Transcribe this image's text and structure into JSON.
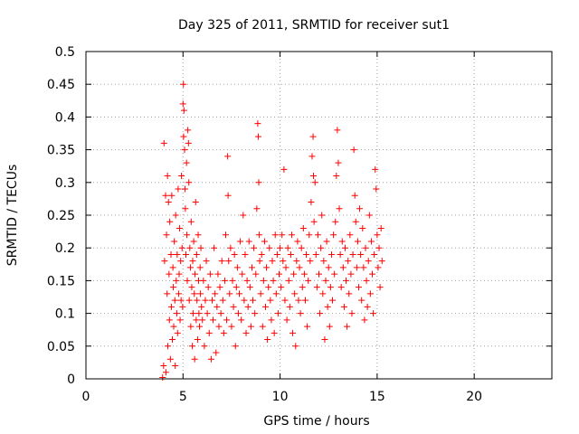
{
  "chart_data": {
    "type": "scatter",
    "title": "Day 325 of 2011, SRMTID for receiver sut1",
    "xlabel": "GPS time / hours",
    "ylabel": "SRMTID / TECUs",
    "xlim": [
      0,
      24
    ],
    "ylim": [
      0,
      0.5
    ],
    "xticks": [
      0,
      5,
      10,
      15,
      20
    ],
    "xtick_labels": [
      "0",
      "5",
      "10",
      "15",
      "20"
    ],
    "yticks": [
      0,
      0.05,
      0.1,
      0.15,
      0.2,
      0.25,
      0.3,
      0.35,
      0.4,
      0.45,
      0.5
    ],
    "ytick_labels": [
      "0",
      "0.05",
      "0.1",
      "0.15",
      "0.2",
      "0.25",
      "0.3",
      "0.35",
      "0.4",
      "0.45",
      "0.5"
    ],
    "grid": true,
    "marker": "+",
    "color": "#ff0000",
    "series": [
      {
        "name": "SRMTID",
        "points": [
          [
            3.95,
            0.002
          ],
          [
            4.0,
            0.02
          ],
          [
            4.02,
            0.36
          ],
          [
            4.05,
            0.18
          ],
          [
            4.1,
            0.28
          ],
          [
            4.12,
            0.01
          ],
          [
            4.15,
            0.22
          ],
          [
            4.18,
            0.13
          ],
          [
            4.2,
            0.31
          ],
          [
            4.22,
            0.05
          ],
          [
            4.25,
            0.27
          ],
          [
            4.28,
            0.16
          ],
          [
            4.3,
            0.09
          ],
          [
            4.32,
            0.24
          ],
          [
            4.35,
            0.03
          ],
          [
            4.38,
            0.19
          ],
          [
            4.4,
            0.11
          ],
          [
            4.42,
            0.28
          ],
          [
            4.45,
            0.06
          ],
          [
            4.48,
            0.17
          ],
          [
            4.5,
            0.14
          ],
          [
            4.52,
            0.08
          ],
          [
            4.55,
            0.21
          ],
          [
            4.58,
            0.12
          ],
          [
            4.6,
            0.02
          ],
          [
            4.62,
            0.25
          ],
          [
            4.65,
            0.15
          ],
          [
            4.68,
            0.1
          ],
          [
            4.7,
            0.19
          ],
          [
            4.72,
            0.07
          ],
          [
            4.75,
            0.29
          ],
          [
            4.78,
            0.13
          ],
          [
            4.8,
            0.16
          ],
          [
            4.82,
            0.23
          ],
          [
            4.85,
            0.09
          ],
          [
            4.88,
            0.18
          ],
          [
            4.9,
            0.12
          ],
          [
            4.92,
            0.31
          ],
          [
            4.95,
            0.2
          ],
          [
            4.98,
            0.11
          ],
          [
            5.0,
            0.42
          ],
          [
            5.02,
            0.45
          ],
          [
            5.03,
            0.37
          ],
          [
            5.05,
            0.41
          ],
          [
            5.08,
            0.35
          ],
          [
            5.1,
            0.29
          ],
          [
            5.12,
            0.26
          ],
          [
            5.15,
            0.19
          ],
          [
            5.18,
            0.33
          ],
          [
            5.2,
            0.22
          ],
          [
            5.22,
            0.15
          ],
          [
            5.25,
            0.38
          ],
          [
            5.28,
            0.36
          ],
          [
            5.3,
            0.3
          ],
          [
            5.32,
            0.12
          ],
          [
            5.35,
            0.2
          ],
          [
            5.38,
            0.17
          ],
          [
            5.4,
            0.08
          ],
          [
            5.42,
            0.24
          ],
          [
            5.45,
            0.14
          ],
          [
            5.48,
            0.05
          ],
          [
            5.5,
            0.18
          ],
          [
            5.52,
            0.1
          ],
          [
            5.55,
            0.21
          ],
          [
            5.58,
            0.13
          ],
          [
            5.6,
            0.03
          ],
          [
            5.62,
            0.16
          ],
          [
            5.65,
            0.27
          ],
          [
            5.68,
            0.09
          ],
          [
            5.7,
            0.19
          ],
          [
            5.72,
            0.12
          ],
          [
            5.75,
            0.06
          ],
          [
            5.78,
            0.22
          ],
          [
            5.8,
            0.15
          ],
          [
            5.82,
            0.1
          ],
          [
            5.85,
            0.08
          ],
          [
            5.88,
            0.17
          ],
          [
            5.9,
            0.13
          ],
          [
            5.92,
            0.2
          ],
          [
            5.95,
            0.11
          ],
          [
            6.0,
            0.09
          ],
          [
            6.05,
            0.15
          ],
          [
            6.1,
            0.05
          ],
          [
            6.15,
            0.12
          ],
          [
            6.2,
            0.18
          ],
          [
            6.25,
            0.1
          ],
          [
            6.3,
            0.14
          ],
          [
            6.35,
            0.07
          ],
          [
            6.4,
            0.16
          ],
          [
            6.45,
            0.03
          ],
          [
            6.5,
            0.12
          ],
          [
            6.55,
            0.09
          ],
          [
            6.6,
            0.2
          ],
          [
            6.65,
            0.13
          ],
          [
            6.7,
            0.04
          ],
          [
            6.75,
            0.11
          ],
          [
            6.8,
            0.16
          ],
          [
            6.85,
            0.08
          ],
          [
            6.9,
            0.14
          ],
          [
            6.95,
            0.1
          ],
          [
            7.0,
            0.18
          ],
          [
            7.05,
            0.12
          ],
          [
            7.1,
            0.07
          ],
          [
            7.15,
            0.15
          ],
          [
            7.2,
            0.22
          ],
          [
            7.25,
            0.09
          ],
          [
            7.3,
            0.34
          ],
          [
            7.32,
            0.28
          ],
          [
            7.35,
            0.18
          ],
          [
            7.4,
            0.13
          ],
          [
            7.45,
            0.2
          ],
          [
            7.5,
            0.08
          ],
          [
            7.55,
            0.15
          ],
          [
            7.6,
            0.11
          ],
          [
            7.65,
            0.19
          ],
          [
            7.7,
            0.05
          ],
          [
            7.75,
            0.14
          ],
          [
            7.8,
            0.17
          ],
          [
            7.85,
            0.1
          ],
          [
            7.9,
            0.13
          ],
          [
            7.95,
            0.21
          ],
          [
            8.0,
            0.09
          ],
          [
            8.05,
            0.16
          ],
          [
            8.1,
            0.25
          ],
          [
            8.15,
            0.12
          ],
          [
            8.2,
            0.19
          ],
          [
            8.25,
            0.07
          ],
          [
            8.3,
            0.15
          ],
          [
            8.35,
            0.11
          ],
          [
            8.4,
            0.21
          ],
          [
            8.45,
            0.14
          ],
          [
            8.5,
            0.08
          ],
          [
            8.55,
            0.17
          ],
          [
            8.6,
            0.12
          ],
          [
            8.65,
            0.2
          ],
          [
            8.7,
            0.1
          ],
          [
            8.75,
            0.16
          ],
          [
            8.8,
            0.26
          ],
          [
            8.85,
            0.39
          ],
          [
            8.88,
            0.37
          ],
          [
            8.9,
            0.3
          ],
          [
            8.92,
            0.22
          ],
          [
            8.95,
            0.18
          ],
          [
            9.0,
            0.13
          ],
          [
            9.05,
            0.19
          ],
          [
            9.1,
            0.08
          ],
          [
            9.15,
            0.15
          ],
          [
            9.2,
            0.21
          ],
          [
            9.25,
            0.11
          ],
          [
            9.3,
            0.17
          ],
          [
            9.35,
            0.06
          ],
          [
            9.4,
            0.14
          ],
          [
            9.45,
            0.2
          ],
          [
            9.5,
            0.12
          ],
          [
            9.55,
            0.09
          ],
          [
            9.6,
            0.18
          ],
          [
            9.65,
            0.15
          ],
          [
            9.7,
            0.07
          ],
          [
            9.75,
            0.22
          ],
          [
            9.8,
            0.13
          ],
          [
            9.85,
            0.19
          ],
          [
            9.9,
            0.1
          ],
          [
            9.95,
            0.16
          ],
          [
            10.0,
            0.2
          ],
          [
            10.05,
            0.14
          ],
          [
            10.1,
            0.22
          ],
          [
            10.15,
            0.18
          ],
          [
            10.2,
            0.32
          ],
          [
            10.25,
            0.12
          ],
          [
            10.3,
            0.17
          ],
          [
            10.35,
            0.09
          ],
          [
            10.4,
            0.2
          ],
          [
            10.45,
            0.15
          ],
          [
            10.5,
            0.11
          ],
          [
            10.55,
            0.19
          ],
          [
            10.6,
            0.22
          ],
          [
            10.65,
            0.07
          ],
          [
            10.7,
            0.16
          ],
          [
            10.75,
            0.13
          ],
          [
            10.8,
            0.05
          ],
          [
            10.85,
            0.18
          ],
          [
            10.9,
            0.21
          ],
          [
            10.95,
            0.12
          ],
          [
            11.0,
            0.17
          ],
          [
            11.05,
            0.1
          ],
          [
            11.1,
            0.2
          ],
          [
            11.15,
            0.14
          ],
          [
            11.2,
            0.23
          ],
          [
            11.25,
            0.16
          ],
          [
            11.3,
            0.12
          ],
          [
            11.35,
            0.19
          ],
          [
            11.4,
            0.08
          ],
          [
            11.45,
            0.15
          ],
          [
            11.5,
            0.22
          ],
          [
            11.55,
            0.18
          ],
          [
            11.6,
            0.27
          ],
          [
            11.65,
            0.34
          ],
          [
            11.7,
            0.37
          ],
          [
            11.72,
            0.31
          ],
          [
            11.75,
            0.24
          ],
          [
            11.8,
            0.3
          ],
          [
            11.85,
            0.19
          ],
          [
            11.9,
            0.14
          ],
          [
            11.95,
            0.22
          ],
          [
            12.0,
            0.16
          ],
          [
            12.05,
            0.1
          ],
          [
            12.1,
            0.2
          ],
          [
            12.15,
            0.25
          ],
          [
            12.2,
            0.13
          ],
          [
            12.25,
            0.18
          ],
          [
            12.3,
            0.06
          ],
          [
            12.35,
            0.15
          ],
          [
            12.4,
            0.21
          ],
          [
            12.45,
            0.11
          ],
          [
            12.5,
            0.17
          ],
          [
            12.55,
            0.08
          ],
          [
            12.6,
            0.14
          ],
          [
            12.65,
            0.19
          ],
          [
            12.7,
            0.12
          ],
          [
            12.75,
            0.22
          ],
          [
            12.8,
            0.16
          ],
          [
            12.85,
            0.24
          ],
          [
            12.9,
            0.31
          ],
          [
            12.95,
            0.38
          ],
          [
            13.0,
            0.33
          ],
          [
            13.05,
            0.26
          ],
          [
            13.1,
            0.19
          ],
          [
            13.15,
            0.14
          ],
          [
            13.2,
            0.21
          ],
          [
            13.25,
            0.17
          ],
          [
            13.3,
            0.11
          ],
          [
            13.35,
            0.2
          ],
          [
            13.4,
            0.15
          ],
          [
            13.45,
            0.08
          ],
          [
            13.5,
            0.18
          ],
          [
            13.55,
            0.13
          ],
          [
            13.6,
            0.22
          ],
          [
            13.65,
            0.16
          ],
          [
            13.7,
            0.1
          ],
          [
            13.75,
            0.19
          ],
          [
            13.8,
            0.35
          ],
          [
            13.85,
            0.28
          ],
          [
            13.9,
            0.24
          ],
          [
            13.95,
            0.17
          ],
          [
            14.0,
            0.21
          ],
          [
            14.05,
            0.14
          ],
          [
            14.1,
            0.26
          ],
          [
            14.15,
            0.19
          ],
          [
            14.2,
            0.12
          ],
          [
            14.25,
            0.23
          ],
          [
            14.3,
            0.17
          ],
          [
            14.35,
            0.09
          ],
          [
            14.4,
            0.2
          ],
          [
            14.45,
            0.15
          ],
          [
            14.5,
            0.11
          ],
          [
            14.55,
            0.18
          ],
          [
            14.6,
            0.25
          ],
          [
            14.65,
            0.13
          ],
          [
            14.7,
            0.21
          ],
          [
            14.75,
            0.16
          ],
          [
            14.8,
            0.1
          ],
          [
            14.85,
            0.19
          ],
          [
            14.9,
            0.32
          ],
          [
            14.95,
            0.29
          ],
          [
            15.0,
            0.22
          ],
          [
            15.05,
            0.17
          ],
          [
            15.1,
            0.2
          ],
          [
            15.15,
            0.14
          ],
          [
            15.2,
            0.23
          ],
          [
            15.25,
            0.18
          ]
        ]
      }
    ]
  }
}
